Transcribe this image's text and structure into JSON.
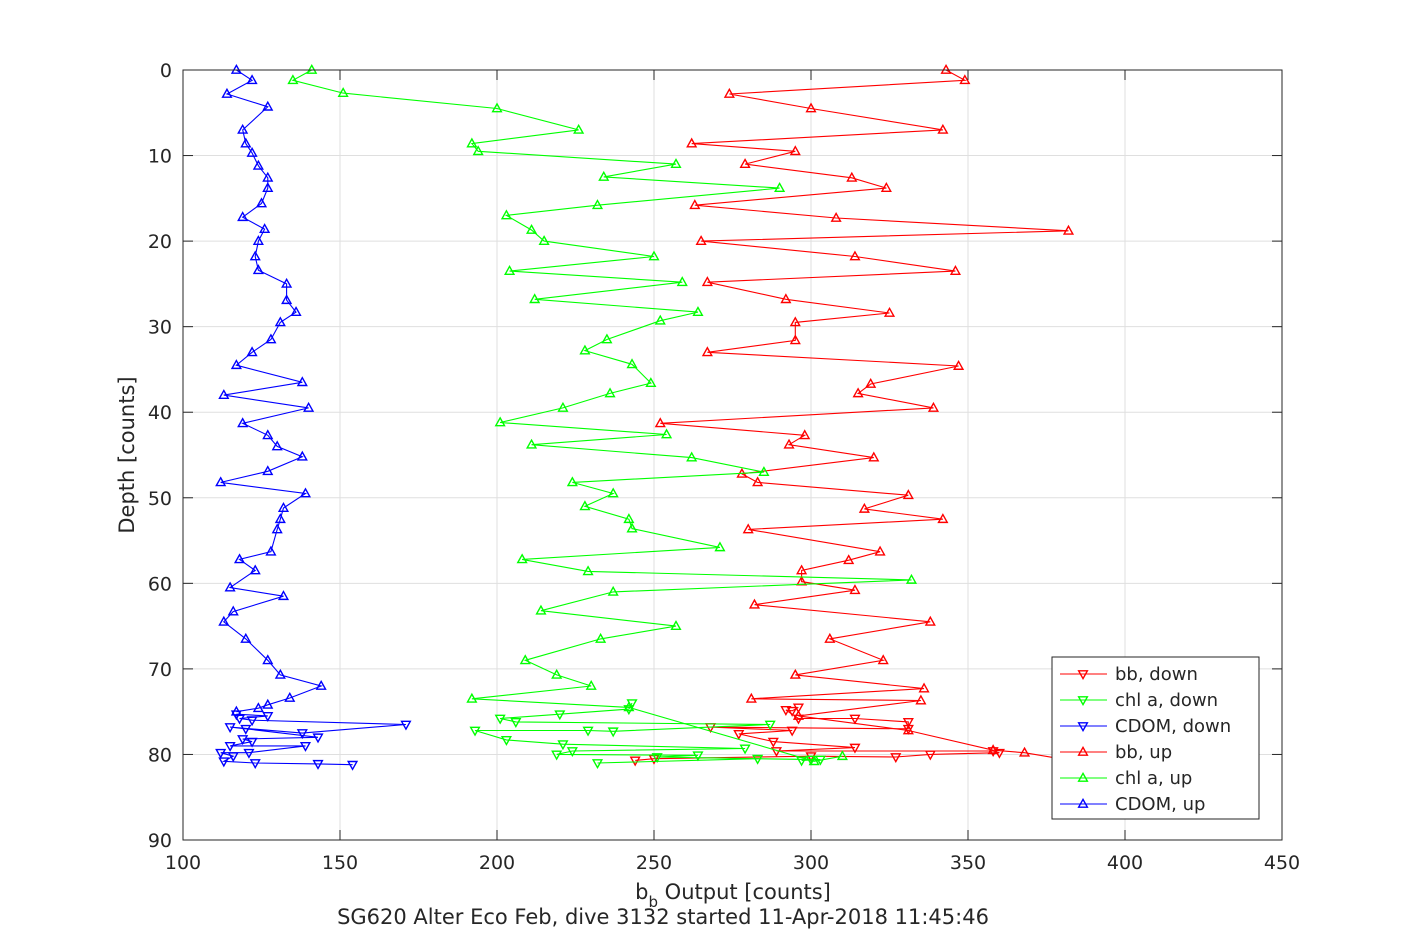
{
  "chart_data": {
    "type": "line",
    "xlabel_main": "b",
    "xlabel_sub": "b",
    "xlabel_rest": " Output [counts]",
    "ylabel": "Depth [counts]",
    "caption": "SG620 Alter Eco Feb, dive 3132 started 11-Apr-2018 11:45:46",
    "xlim": [
      100,
      450
    ],
    "ylim": [
      0,
      90
    ],
    "y_reversed": true,
    "grid": true,
    "legend_position": "bottom-right",
    "xticks": [
      "100",
      "150",
      "200",
      "250",
      "300",
      "350",
      "400",
      "450"
    ],
    "yticks": [
      "0",
      "10",
      "20",
      "30",
      "40",
      "50",
      "60",
      "70",
      "80",
      "90"
    ],
    "series": [
      {
        "name": "bb, down",
        "color": "#ff0000",
        "marker": "triangle-down",
        "points": [
          [
            244,
            80.7
          ],
          [
            250,
            80.5
          ],
          [
            300,
            80.2
          ],
          [
            327,
            80.3
          ],
          [
            338,
            80.0
          ],
          [
            360,
            79.8
          ],
          [
            358,
            79.6
          ],
          [
            289,
            79.6
          ],
          [
            314,
            79.2
          ],
          [
            288,
            78.5
          ],
          [
            277,
            77.6
          ],
          [
            294,
            77.2
          ],
          [
            268,
            76.8
          ],
          [
            331,
            77.0
          ],
          [
            331,
            76.2
          ],
          [
            314,
            75.8
          ],
          [
            296,
            75.8
          ],
          [
            292,
            74.8
          ],
          [
            294,
            74.9
          ],
          [
            296,
            74.5
          ]
        ]
      },
      {
        "name": "chl a, down",
        "color": "#00ff00",
        "marker": "triangle-down",
        "points": [
          [
            232,
            81.0
          ],
          [
            283,
            80.5
          ],
          [
            303,
            80.6
          ],
          [
            297,
            80.7
          ],
          [
            300,
            80.6
          ],
          [
            251,
            80.3
          ],
          [
            264,
            80.1
          ],
          [
            219,
            80.0
          ],
          [
            224,
            79.6
          ],
          [
            279,
            79.3
          ],
          [
            221,
            78.8
          ],
          [
            203,
            78.3
          ],
          [
            193,
            77.2
          ],
          [
            229,
            77.2
          ],
          [
            237,
            77.3
          ],
          [
            287,
            76.5
          ],
          [
            206,
            76.2
          ],
          [
            201,
            75.8
          ],
          [
            220,
            75.3
          ],
          [
            242,
            74.7
          ],
          [
            243,
            74.0
          ]
        ]
      },
      {
        "name": "CDOM, down",
        "color": "#0000ff",
        "marker": "triangle-down",
        "points": [
          [
            154,
            81.2
          ],
          [
            143,
            81.1
          ],
          [
            123,
            81.0
          ],
          [
            113,
            80.8
          ],
          [
            116,
            80.2
          ],
          [
            112,
            79.8
          ],
          [
            121,
            79.8
          ],
          [
            139,
            79.0
          ],
          [
            115,
            79.0
          ],
          [
            122,
            78.5
          ],
          [
            119,
            78.2
          ],
          [
            143,
            78.0
          ],
          [
            120,
            77.0
          ],
          [
            115,
            76.8
          ],
          [
            138,
            77.5
          ],
          [
            171,
            76.5
          ],
          [
            122,
            76.0
          ],
          [
            118,
            75.8
          ],
          [
            127,
            75.5
          ],
          [
            117,
            75.3
          ]
        ]
      },
      {
        "name": "bb, up",
        "color": "#ff0000",
        "marker": "triangle-up",
        "points": [
          [
            343,
            0
          ],
          [
            349,
            1.2
          ],
          [
            274,
            2.8
          ],
          [
            300,
            4.5
          ],
          [
            342,
            7.0
          ],
          [
            262,
            8.6
          ],
          [
            295,
            9.5
          ],
          [
            279,
            11.0
          ],
          [
            313,
            12.6
          ],
          [
            324,
            13.8
          ],
          [
            263,
            15.8
          ],
          [
            308,
            17.3
          ],
          [
            382,
            18.8
          ],
          [
            265,
            20.0
          ],
          [
            314,
            21.8
          ],
          [
            346,
            23.5
          ],
          [
            267,
            24.8
          ],
          [
            292,
            26.8
          ],
          [
            325,
            28.4
          ],
          [
            295,
            29.5
          ],
          [
            295,
            31.6
          ],
          [
            267,
            33.0
          ],
          [
            347,
            34.6
          ],
          [
            319,
            36.7
          ],
          [
            315,
            37.8
          ],
          [
            339,
            39.5
          ],
          [
            252,
            41.3
          ],
          [
            298,
            42.7
          ],
          [
            293,
            43.8
          ],
          [
            320,
            45.3
          ],
          [
            278,
            47.2
          ],
          [
            283,
            48.2
          ],
          [
            331,
            49.7
          ],
          [
            317,
            51.3
          ],
          [
            342,
            52.5
          ],
          [
            280,
            53.7
          ],
          [
            322,
            56.3
          ],
          [
            312,
            57.3
          ],
          [
            297,
            58.5
          ],
          [
            297,
            59.8
          ],
          [
            314,
            60.8
          ],
          [
            282,
            62.5
          ],
          [
            338,
            64.5
          ],
          [
            306,
            66.5
          ],
          [
            323,
            69.0
          ],
          [
            295,
            70.7
          ],
          [
            336,
            72.3
          ],
          [
            281,
            73.5
          ],
          [
            335,
            73.7
          ],
          [
            296,
            75.5
          ],
          [
            331,
            77.2
          ],
          [
            358,
            79.5
          ],
          [
            368,
            79.8
          ],
          [
            381,
            80.6
          ]
        ]
      },
      {
        "name": "chl a, up",
        "color": "#00ff00",
        "marker": "triangle-up",
        "points": [
          [
            141,
            0
          ],
          [
            135,
            1.2
          ],
          [
            151,
            2.7
          ],
          [
            200,
            4.5
          ],
          [
            226,
            7.0
          ],
          [
            192,
            8.6
          ],
          [
            194,
            9.5
          ],
          [
            257,
            11.0
          ],
          [
            234,
            12.5
          ],
          [
            290,
            13.8
          ],
          [
            232,
            15.8
          ],
          [
            203,
            17.0
          ],
          [
            211,
            18.7
          ],
          [
            215,
            20.0
          ],
          [
            250,
            21.8
          ],
          [
            204,
            23.5
          ],
          [
            259,
            24.8
          ],
          [
            212,
            26.8
          ],
          [
            264,
            28.3
          ],
          [
            252,
            29.3
          ],
          [
            235,
            31.5
          ],
          [
            228,
            32.8
          ],
          [
            243,
            34.4
          ],
          [
            249,
            36.6
          ],
          [
            236,
            37.8
          ],
          [
            221,
            39.5
          ],
          [
            201,
            41.2
          ],
          [
            254,
            42.6
          ],
          [
            211,
            43.8
          ],
          [
            262,
            45.3
          ],
          [
            285,
            47.0
          ],
          [
            224,
            48.2
          ],
          [
            237,
            49.5
          ],
          [
            228,
            51.0
          ],
          [
            242,
            52.5
          ],
          [
            243,
            53.6
          ],
          [
            271,
            55.8
          ],
          [
            208,
            57.2
          ],
          [
            229,
            58.6
          ],
          [
            332,
            59.6
          ],
          [
            237,
            61.0
          ],
          [
            214,
            63.2
          ],
          [
            257,
            65.0
          ],
          [
            233,
            66.5
          ],
          [
            209,
            69.0
          ],
          [
            219,
            70.7
          ],
          [
            230,
            72.0
          ],
          [
            192,
            73.5
          ],
          [
            242,
            74.5
          ],
          [
            301,
            80.8
          ],
          [
            310,
            80.2
          ]
        ]
      },
      {
        "name": "CDOM, up",
        "color": "#0000ff",
        "marker": "triangle-up",
        "points": [
          [
            117,
            0
          ],
          [
            122,
            1.2
          ],
          [
            114,
            2.8
          ],
          [
            127,
            4.3
          ],
          [
            119,
            7.0
          ],
          [
            120,
            8.6
          ],
          [
            122,
            9.7
          ],
          [
            124,
            11.2
          ],
          [
            127,
            12.6
          ],
          [
            127,
            13.8
          ],
          [
            125,
            15.6
          ],
          [
            119,
            17.2
          ],
          [
            126,
            18.6
          ],
          [
            124,
            20.0
          ],
          [
            123,
            21.8
          ],
          [
            124,
            23.4
          ],
          [
            133,
            25.0
          ],
          [
            133,
            26.9
          ],
          [
            136,
            28.3
          ],
          [
            131,
            29.5
          ],
          [
            128,
            31.5
          ],
          [
            122,
            33.0
          ],
          [
            117,
            34.5
          ],
          [
            138,
            36.5
          ],
          [
            113,
            38.0
          ],
          [
            140,
            39.5
          ],
          [
            119,
            41.3
          ],
          [
            127,
            42.7
          ],
          [
            130,
            44.0
          ],
          [
            138,
            45.2
          ],
          [
            127,
            46.9
          ],
          [
            112,
            48.2
          ],
          [
            139,
            49.5
          ],
          [
            132,
            51.2
          ],
          [
            131,
            52.5
          ],
          [
            130,
            53.7
          ],
          [
            128,
            56.3
          ],
          [
            118,
            57.2
          ],
          [
            123,
            58.5
          ],
          [
            115,
            60.5
          ],
          [
            132,
            61.5
          ],
          [
            116,
            63.3
          ],
          [
            113,
            64.5
          ],
          [
            120,
            66.5
          ],
          [
            127,
            69.0
          ],
          [
            131,
            70.7
          ],
          [
            144,
            72.0
          ],
          [
            134,
            73.4
          ],
          [
            127,
            74.2
          ],
          [
            124,
            74.6
          ],
          [
            117,
            75.0
          ]
        ]
      }
    ]
  }
}
